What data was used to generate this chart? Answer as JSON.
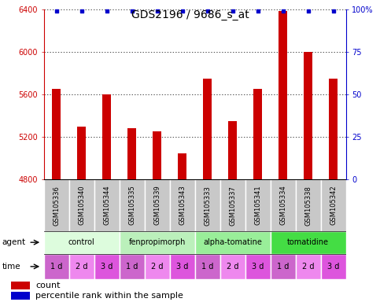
{
  "title": "GDS2196 / 9686_s_at",
  "samples": [
    "GSM105336",
    "GSM105340",
    "GSM105344",
    "GSM105335",
    "GSM105339",
    "GSM105343",
    "GSM105333",
    "GSM105337",
    "GSM105341",
    "GSM105334",
    "GSM105338",
    "GSM105342"
  ],
  "counts": [
    5650,
    5300,
    5600,
    5280,
    5250,
    5050,
    5750,
    5350,
    5650,
    6380,
    6000,
    5750
  ],
  "bar_color": "#cc0000",
  "dot_color": "#0000cc",
  "ylim_left": [
    4800,
    6400
  ],
  "ylim_right": [
    0,
    100
  ],
  "yticks_left": [
    4800,
    5200,
    5600,
    6000,
    6400
  ],
  "yticks_right": [
    0,
    25,
    50,
    75,
    100
  ],
  "ytick_right_labels": [
    "0",
    "25",
    "50",
    "75",
    "100%"
  ],
  "agents": [
    {
      "label": "control",
      "start": 0,
      "end": 3,
      "color": "#ddfcdd"
    },
    {
      "label": "fenpropimorph",
      "start": 3,
      "end": 6,
      "color": "#bbf0bb"
    },
    {
      "label": "alpha-tomatine",
      "start": 6,
      "end": 9,
      "color": "#99ee99"
    },
    {
      "label": "tomatidine",
      "start": 9,
      "end": 12,
      "color": "#44dd44"
    }
  ],
  "times": [
    "1 d",
    "2 d",
    "3 d",
    "1 d",
    "2 d",
    "3 d",
    "1 d",
    "2 d",
    "3 d",
    "1 d",
    "2 d",
    "3 d"
  ],
  "time_colors": [
    "#cc66cc",
    "#ee88ee",
    "#dd55dd",
    "#cc66cc",
    "#ee88ee",
    "#dd55dd",
    "#cc66cc",
    "#ee88ee",
    "#dd55dd",
    "#cc66cc",
    "#ee88ee",
    "#dd55dd"
  ],
  "sample_bg_color": "#c8c8c8",
  "sample_border_color": "#aaaaaa",
  "grid_color": "#000000",
  "title_fontsize": 10,
  "tick_fontsize": 7,
  "bar_width": 0.35,
  "legend_fontsize": 8
}
